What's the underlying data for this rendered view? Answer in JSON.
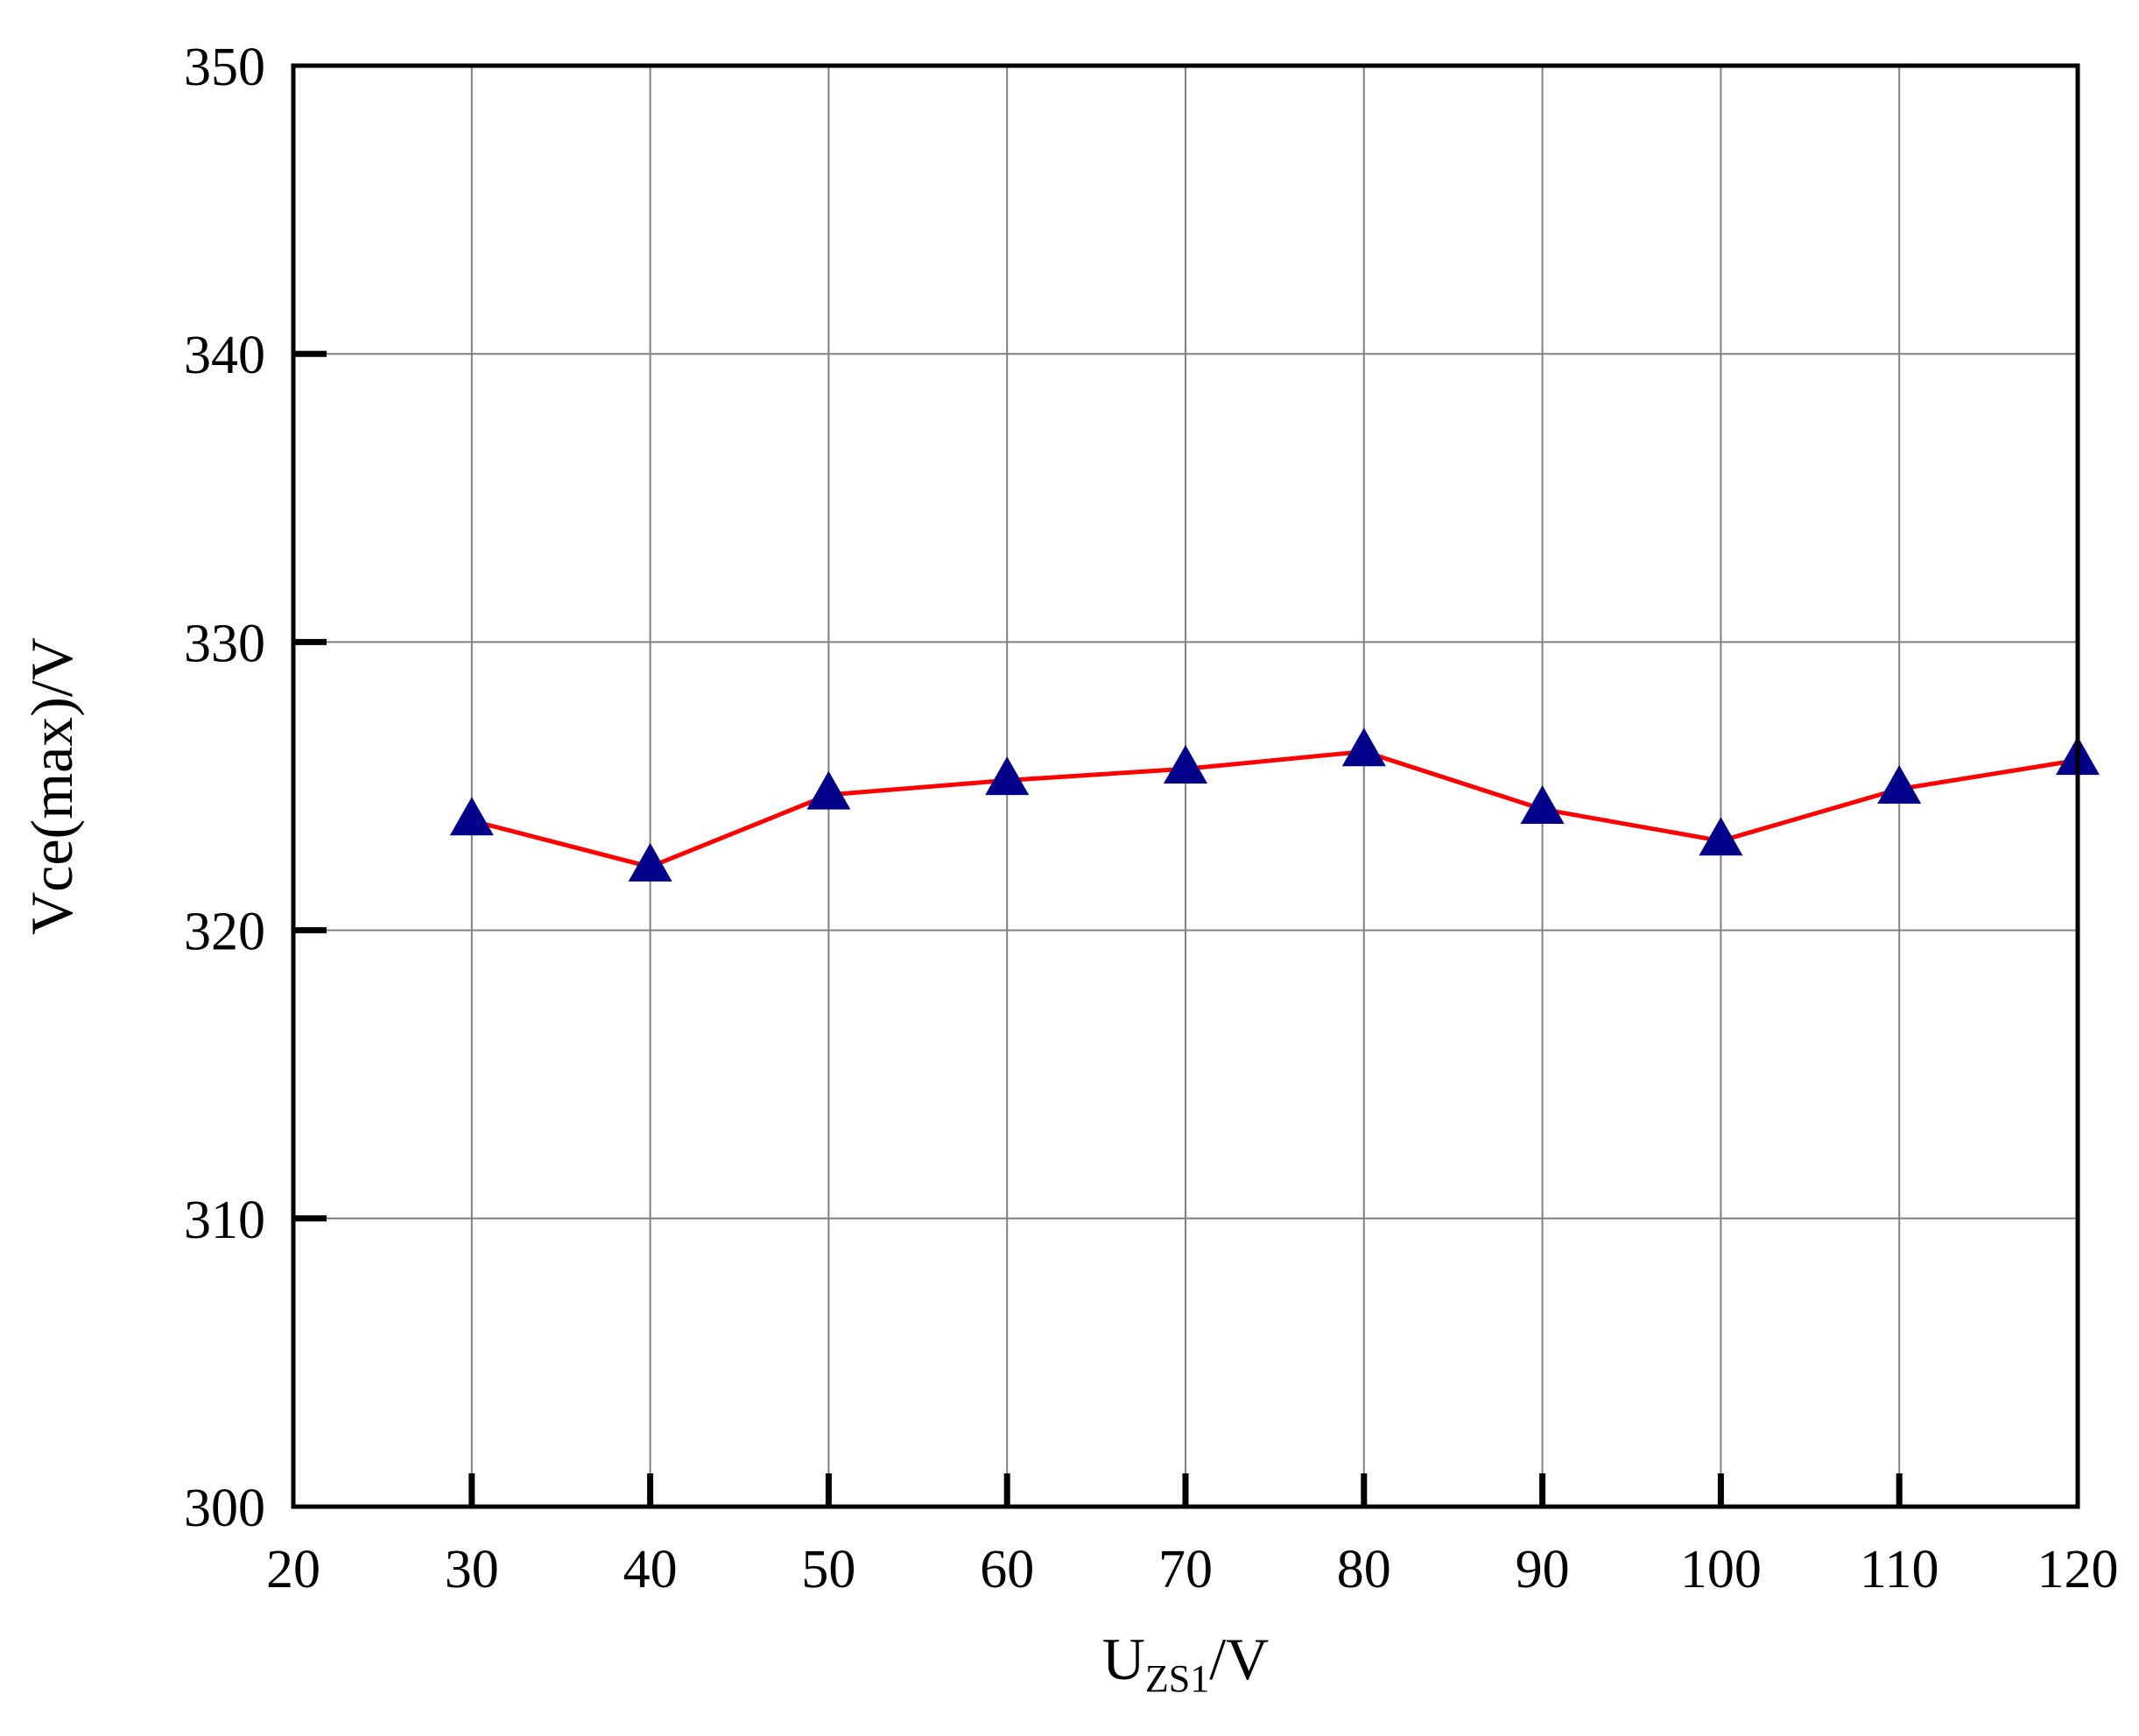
{
  "chart_data": {
    "type": "line",
    "title": "",
    "xlabel": {
      "main": "U",
      "subscript": "ZS1",
      "suffix": "/V"
    },
    "ylabel": "Vce(max)/V",
    "xlim": [
      20,
      120
    ],
    "ylim": [
      300,
      350
    ],
    "xticks": [
      20,
      30,
      40,
      50,
      60,
      70,
      80,
      90,
      100,
      110,
      120
    ],
    "yticks": [
      300,
      310,
      320,
      330,
      340,
      350
    ],
    "grid": true,
    "legend": "none",
    "series": [
      {
        "x": [
          30,
          40,
          50,
          60,
          70,
          80,
          90,
          100,
          110,
          120
        ],
        "y": [
          323.8,
          322.2,
          324.7,
          325.2,
          325.6,
          326.2,
          324.2,
          323.1,
          324.9,
          325.9
        ],
        "line_color": "#ff0000",
        "marker": "triangle-up",
        "marker_color": "#00008b"
      }
    ]
  }
}
